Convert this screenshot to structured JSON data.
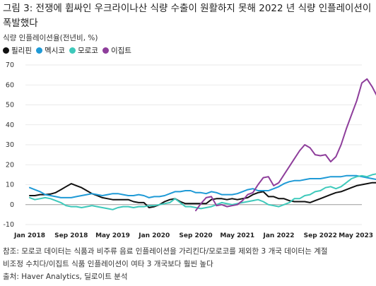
{
  "title": "그림 3: 전쟁에 휩싸인 우크라이나산 식량 수출이 원활하지 못해 2022 년 식량 인플레이션이 폭발했다",
  "notes": [
    "참조: 모로코 데이터는 식품과 비주류 음료 인플레이션을 가리킨다/모로코를 제외한 3 개국 데이터는 계절",
    "비조정 수치다/이집트 식품 인플레이션이 여타 3 개국보다 훨씬 높다",
    "출처: Haver Analytics, 딜로이트 분석"
  ],
  "colors": {
    "philippines": "#111111",
    "mexico": "#1f9ad6",
    "morocco": "#3ec9bb",
    "egypt": "#8e3e9b",
    "grid": "#e3e3e3",
    "zero_line": "#9a9a9a"
  },
  "chart_data": {
    "type": "line",
    "title": "그림 3: 전쟁에 휩싸인 우크라이나산 식량 수출이 원활하지 못해 2022 년 식량 인플레이션이 폭발했다",
    "ylabel": "식량 인플레이션율(전년비, %)",
    "xlabel": "",
    "ylim": [
      -10,
      70
    ],
    "yticks": [
      -10,
      0,
      10,
      20,
      30,
      40,
      50,
      60,
      70
    ],
    "xlim": [
      "2018-01",
      "2023-05"
    ],
    "xticks": [
      {
        "date": "2018-01",
        "label": "Jan 2018"
      },
      {
        "date": "2018-09",
        "label": "Sep 2018"
      },
      {
        "date": "2019-05",
        "label": "May 2019"
      },
      {
        "date": "2020-01",
        "label": "Jan 2020"
      },
      {
        "date": "2020-09",
        "label": "Sep 2020"
      },
      {
        "date": "2021-05",
        "label": "May 2021"
      },
      {
        "date": "2022-01",
        "label": "Jan 2022"
      },
      {
        "date": "2022-09",
        "label": "Sep 2022"
      },
      {
        "date": "2023-05",
        "label": "May 2023"
      }
    ],
    "grid": "horizontal",
    "legend_position": "top-left",
    "series": [
      {
        "name": "필리핀",
        "color": "#111111",
        "start": "2018-01",
        "values": [
          4.5,
          4.5,
          5,
          5,
          5.3,
          6,
          7.5,
          9,
          10.5,
          9.5,
          8.5,
          7,
          5.5,
          4.5,
          3.5,
          3,
          2.5,
          2.5,
          2.5,
          2.5,
          1.5,
          1,
          1,
          -1.5,
          -1,
          0,
          1.5,
          2.5,
          3,
          1.5,
          0.5,
          0.5,
          0.5,
          0.5,
          0.5,
          2.5,
          3,
          3,
          2.5,
          3,
          2.5,
          3,
          3.5,
          5,
          6,
          6.5,
          4,
          4,
          3,
          3,
          2,
          1.5,
          1.5,
          1.5,
          1,
          2,
          3,
          4,
          5,
          6,
          6.5,
          7.5,
          8.5,
          9.5,
          10,
          10.5,
          11,
          11,
          9.5,
          8.5,
          7.5,
          7,
          6.5
        ]
      },
      {
        "name": "멕시코",
        "color": "#1f9ad6",
        "start": "2018-01",
        "values": [
          8.5,
          7.5,
          6.5,
          5,
          4.5,
          4,
          3.5,
          3.5,
          3.5,
          4,
          4.5,
          5,
          5.5,
          5,
          4.5,
          5,
          5.5,
          5.5,
          5,
          4.5,
          4.5,
          5,
          4.5,
          3.5,
          4,
          4,
          4.5,
          5.5,
          6.5,
          6.5,
          7,
          7,
          6,
          6,
          5.5,
          6.5,
          6,
          5,
          5,
          5,
          5.5,
          6.5,
          7.5,
          8,
          7,
          7,
          7,
          8,
          9,
          10.5,
          11.5,
          12,
          12,
          12.5,
          13,
          13,
          13,
          13.5,
          14,
          14,
          14,
          14.5,
          14.5,
          14.5,
          14,
          13.5,
          13,
          12.5,
          12,
          11.5,
          10.5,
          9.5,
          8.5
        ]
      },
      {
        "name": "모로코",
        "color": "#3ec9bb",
        "start": "2018-01",
        "values": [
          3.5,
          2.5,
          3,
          3.5,
          3,
          2,
          1,
          -0.5,
          -1,
          -1,
          -1.5,
          -1,
          -0.5,
          -1,
          -1.5,
          -2,
          -2.5,
          -1.5,
          -1,
          -1,
          -1.5,
          -1,
          -1,
          -0.5,
          -0.5,
          0,
          0.5,
          1,
          3,
          1,
          -1,
          -1,
          -1.5,
          -2,
          -1.5,
          -1,
          0,
          1,
          0.5,
          0,
          0.5,
          1,
          1.5,
          2,
          2.5,
          1.5,
          0,
          -0.5,
          -1,
          0,
          1,
          3,
          3,
          4.5,
          5,
          6.5,
          7,
          8.5,
          9,
          8,
          9,
          11,
          13,
          14,
          14.5,
          14,
          15,
          15.5,
          18,
          21,
          16.5,
          16.5,
          15.5
        ]
      },
      {
        "name": "이집트",
        "color": "#8e3e9b",
        "start": "2020-09",
        "values": [
          -3,
          0.5,
          3.5,
          4,
          -0.5,
          0,
          -1,
          -0.5,
          0,
          2,
          5,
          6,
          10,
          13.5,
          14,
          9.5,
          11,
          15,
          19,
          23,
          27,
          30,
          28.5,
          25,
          24.5,
          25,
          21.5,
          24,
          30,
          38,
          45,
          52,
          61,
          63,
          59,
          54,
          59.5
        ]
      }
    ]
  }
}
